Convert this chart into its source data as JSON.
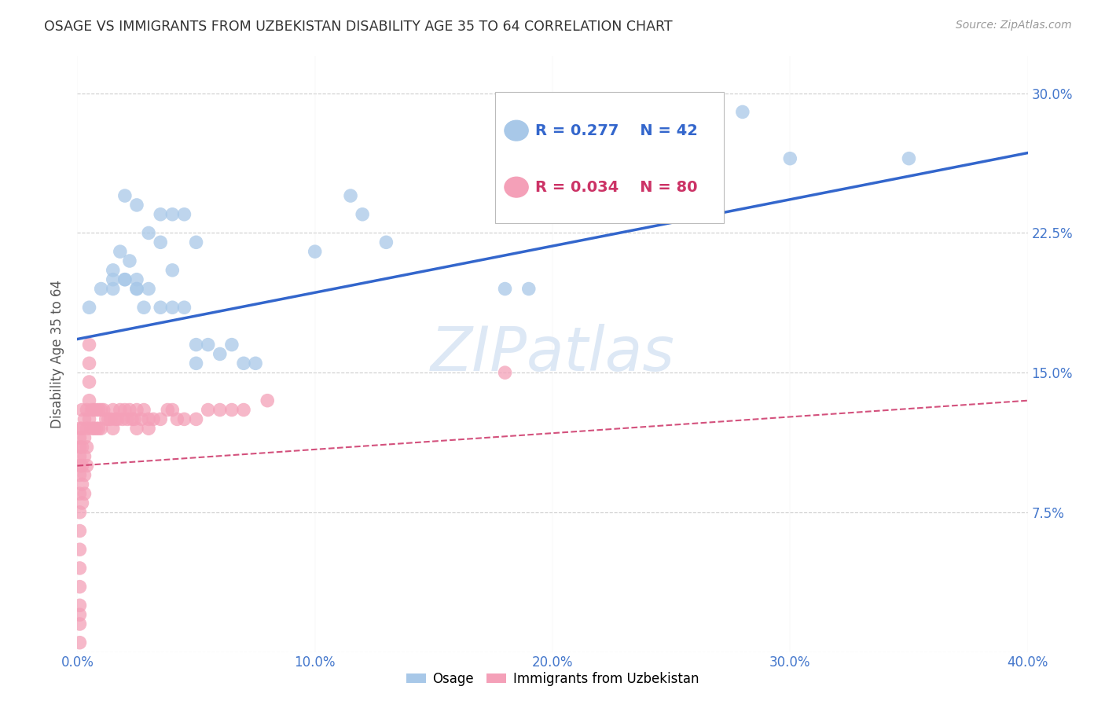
{
  "title": "OSAGE VS IMMIGRANTS FROM UZBEKISTAN DISABILITY AGE 35 TO 64 CORRELATION CHART",
  "source": "Source: ZipAtlas.com",
  "ylabel": "Disability Age 35 to 64",
  "xlim": [
    0.0,
    0.4
  ],
  "ylim": [
    0.0,
    0.32
  ],
  "xticks": [
    0.0,
    0.1,
    0.2,
    0.3,
    0.4
  ],
  "yticks": [
    0.0,
    0.075,
    0.15,
    0.225,
    0.3
  ],
  "ytick_labels": [
    "",
    "7.5%",
    "15.0%",
    "22.5%",
    "30.0%"
  ],
  "xtick_labels": [
    "0.0%",
    "10.0%",
    "20.0%",
    "30.0%",
    "40.0%"
  ],
  "blue_color": "#a8c8e8",
  "pink_color": "#f4a0b8",
  "blue_line_color": "#3366cc",
  "pink_line_color": "#cc3366",
  "axis_label_color": "#4477cc",
  "watermark_text": "ZIPatlas",
  "watermark_color": "#dde8f5",
  "background_color": "#ffffff",
  "grid_color": "#cccccc",
  "osage_x": [
    0.015,
    0.015,
    0.018,
    0.02,
    0.022,
    0.025,
    0.025,
    0.028,
    0.03,
    0.035,
    0.04,
    0.045,
    0.05,
    0.055,
    0.06,
    0.065,
    0.07,
    0.075,
    0.02,
    0.025,
    0.035,
    0.04,
    0.045,
    0.05,
    0.05,
    0.1,
    0.115,
    0.12,
    0.13,
    0.18,
    0.19,
    0.28,
    0.3,
    0.35,
    0.005,
    0.01,
    0.015,
    0.02,
    0.025,
    0.03,
    0.035,
    0.04
  ],
  "osage_y": [
    0.205,
    0.195,
    0.215,
    0.2,
    0.21,
    0.2,
    0.195,
    0.185,
    0.195,
    0.185,
    0.185,
    0.185,
    0.165,
    0.165,
    0.16,
    0.165,
    0.155,
    0.155,
    0.245,
    0.24,
    0.22,
    0.235,
    0.235,
    0.22,
    0.155,
    0.215,
    0.245,
    0.235,
    0.22,
    0.195,
    0.195,
    0.29,
    0.265,
    0.265,
    0.185,
    0.195,
    0.2,
    0.2,
    0.195,
    0.225,
    0.235,
    0.205
  ],
  "uzbek_x": [
    0.001,
    0.001,
    0.001,
    0.001,
    0.001,
    0.001,
    0.001,
    0.001,
    0.001,
    0.001,
    0.001,
    0.001,
    0.001,
    0.001,
    0.001,
    0.002,
    0.002,
    0.002,
    0.002,
    0.002,
    0.002,
    0.003,
    0.003,
    0.003,
    0.003,
    0.003,
    0.004,
    0.004,
    0.004,
    0.004,
    0.005,
    0.005,
    0.005,
    0.005,
    0.005,
    0.006,
    0.006,
    0.007,
    0.007,
    0.008,
    0.008,
    0.009,
    0.009,
    0.01,
    0.01,
    0.011,
    0.012,
    0.013,
    0.014,
    0.015,
    0.015,
    0.016,
    0.017,
    0.018,
    0.019,
    0.02,
    0.021,
    0.022,
    0.023,
    0.024,
    0.025,
    0.025,
    0.027,
    0.028,
    0.03,
    0.03,
    0.032,
    0.035,
    0.038,
    0.04,
    0.042,
    0.045,
    0.05,
    0.055,
    0.06,
    0.065,
    0.07,
    0.08,
    0.18,
    0.001
  ],
  "uzbek_y": [
    0.115,
    0.105,
    0.095,
    0.085,
    0.075,
    0.065,
    0.055,
    0.045,
    0.035,
    0.025,
    0.015,
    0.005,
    0.12,
    0.11,
    0.1,
    0.13,
    0.12,
    0.11,
    0.1,
    0.09,
    0.08,
    0.125,
    0.115,
    0.105,
    0.095,
    0.085,
    0.13,
    0.12,
    0.11,
    0.1,
    0.165,
    0.155,
    0.145,
    0.135,
    0.125,
    0.13,
    0.12,
    0.13,
    0.12,
    0.13,
    0.12,
    0.13,
    0.12,
    0.13,
    0.12,
    0.13,
    0.125,
    0.125,
    0.125,
    0.13,
    0.12,
    0.125,
    0.125,
    0.13,
    0.125,
    0.13,
    0.125,
    0.13,
    0.125,
    0.125,
    0.13,
    0.12,
    0.125,
    0.13,
    0.125,
    0.12,
    0.125,
    0.125,
    0.13,
    0.13,
    0.125,
    0.125,
    0.125,
    0.13,
    0.13,
    0.13,
    0.13,
    0.135,
    0.15,
    0.02
  ],
  "blue_trendline_x": [
    0.0,
    0.4
  ],
  "blue_trendline_y": [
    0.168,
    0.268
  ],
  "pink_trendline_x": [
    0.0,
    0.4
  ],
  "pink_trendline_y": [
    0.1,
    0.135
  ]
}
